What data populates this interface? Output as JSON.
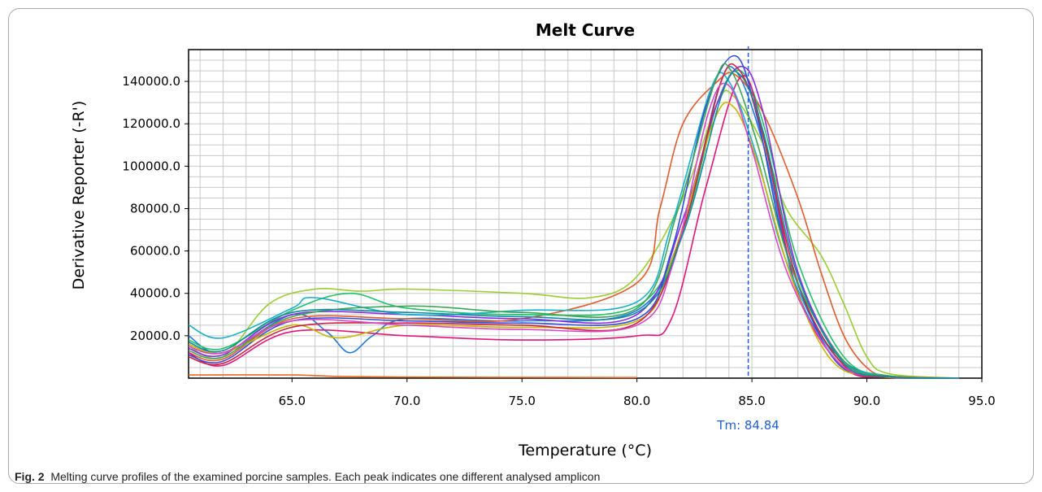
{
  "chart_data": {
    "type": "line",
    "title": "Melt Curve",
    "xlabel": "Temperature (°C)",
    "ylabel": "Derivative Reporter (-R')",
    "xlim": [
      60.5,
      95.0
    ],
    "ylim": [
      0,
      155000
    ],
    "xticks": [
      65.0,
      70.0,
      75.0,
      80.0,
      85.0,
      90.0,
      95.0
    ],
    "xtick_labels": [
      "65.0",
      "70.0",
      "75.0",
      "80.0",
      "85.0",
      "90.0",
      "95.0"
    ],
    "yticks": [
      20000,
      40000,
      60000,
      80000,
      100000,
      120000,
      140000
    ],
    "ytick_labels": [
      "20000.0",
      "40000.0",
      "60000.0",
      "80000.0",
      "100000.0",
      "120000.0",
      "140000.0"
    ],
    "grid": true,
    "threshold": {
      "x": 84.84,
      "label": "Tm: 84.84",
      "color": "#1f5fd6"
    },
    "series": [
      {
        "color": "#e86a1f",
        "x": [
          60.5,
          65,
          67,
          70,
          75,
          80
        ],
        "y": [
          1500,
          1500,
          800,
          500,
          400,
          300
        ]
      },
      {
        "color": "#1f7bd6",
        "x": [
          60.5,
          62,
          65,
          66.5,
          67.5,
          68.5,
          70,
          75,
          80,
          82,
          83.5,
          84.3,
          85.5,
          87,
          89,
          91,
          94
        ],
        "y": [
          20000,
          12000,
          30000,
          22000,
          12000,
          20000,
          28000,
          27000,
          32000,
          70000,
          135000,
          145000,
          110000,
          40000,
          8000,
          1000,
          0
        ]
      },
      {
        "color": "#9acd32",
        "x": [
          60.5,
          62,
          64,
          66,
          68,
          70,
          75,
          78,
          80,
          82,
          83.5,
          84.2,
          85.5,
          86.5,
          88,
          89,
          90,
          91,
          94
        ],
        "y": [
          15000,
          10000,
          35000,
          42000,
          41000,
          42000,
          40000,
          38000,
          48000,
          85000,
          130000,
          133000,
          110000,
          80000,
          58000,
          35000,
          10000,
          2000,
          0
        ]
      },
      {
        "color": "#e05a2b",
        "x": [
          60.5,
          62,
          65,
          70,
          75,
          80,
          81,
          82,
          83.5,
          84.3,
          85.5,
          87,
          88,
          89,
          90,
          91,
          94
        ],
        "y": [
          12000,
          9000,
          28000,
          28000,
          28000,
          45000,
          80000,
          120000,
          140000,
          143000,
          125000,
          85000,
          50000,
          20000,
          5000,
          1000,
          0
        ]
      },
      {
        "color": "#22c06a",
        "x": [
          60.5,
          62,
          65,
          67.5,
          70,
          75,
          80,
          82,
          83.5,
          84.5,
          85.5,
          87,
          89,
          91,
          94
        ],
        "y": [
          18000,
          14000,
          32000,
          40000,
          33000,
          30000,
          34000,
          70000,
          130000,
          145000,
          120000,
          55000,
          10000,
          1000,
          0
        ]
      },
      {
        "color": "#e0157a",
        "x": [
          60.5,
          62,
          65,
          70,
          75,
          80,
          81.5,
          83,
          84.5,
          85.5,
          87,
          89,
          91,
          94
        ],
        "y": [
          12000,
          6000,
          22000,
          20000,
          18000,
          20000,
          28000,
          90000,
          142000,
          115000,
          40000,
          5000,
          500,
          0
        ]
      },
      {
        "color": "#8a2be2",
        "x": [
          60.5,
          62,
          65,
          70,
          75,
          80,
          82,
          83.5,
          84.6,
          85.5,
          87,
          89,
          91,
          94
        ],
        "y": [
          14000,
          11000,
          30000,
          30000,
          28000,
          30000,
          75000,
          130000,
          147000,
          125000,
          50000,
          8000,
          800,
          0
        ]
      },
      {
        "color": "#18b0c8",
        "x": [
          60.5,
          62,
          65,
          66,
          70,
          75,
          80,
          81.5,
          83.2,
          84.0,
          85.2,
          86.5,
          88.5,
          90.5,
          94
        ],
        "y": [
          25000,
          19000,
          33000,
          38000,
          30000,
          32000,
          36000,
          72000,
          136000,
          140000,
          105000,
          55000,
          12000,
          1500,
          0
        ]
      },
      {
        "color": "#2e4fd8",
        "x": [
          60.5,
          62,
          65,
          70,
          75,
          80,
          81.5,
          83,
          84.3,
          85.3,
          86.5,
          88.5,
          90.5,
          94
        ],
        "y": [
          11000,
          8000,
          27000,
          27000,
          26000,
          28000,
          60000,
          128000,
          152000,
          120000,
          60000,
          10000,
          1000,
          0
        ]
      },
      {
        "color": "#c8b400",
        "x": [
          60.5,
          62,
          65,
          67,
          70,
          75,
          80,
          81.5,
          83.3,
          84.2,
          85.3,
          86.8,
          88.5,
          90.5,
          94
        ],
        "y": [
          16000,
          12000,
          25000,
          19000,
          25000,
          24000,
          27000,
          55000,
          120000,
          128000,
          100000,
          45000,
          8000,
          800,
          0
        ]
      },
      {
        "color": "#cc2244",
        "x": [
          60.5,
          62,
          65,
          70,
          75,
          80,
          82,
          83.6,
          84.4,
          85.4,
          87,
          89,
          91,
          94
        ],
        "y": [
          10000,
          7000,
          24000,
          26000,
          25000,
          26000,
          70000,
          138000,
          146000,
          118000,
          45000,
          6000,
          500,
          0
        ]
      },
      {
        "color": "#3aa655",
        "x": [
          60.5,
          62,
          65,
          70,
          75,
          80,
          81.8,
          83.4,
          84.1,
          85.2,
          86.8,
          89,
          91,
          94
        ],
        "y": [
          13000,
          10000,
          29000,
          34000,
          31000,
          33000,
          80000,
          140000,
          145000,
          112000,
          50000,
          8000,
          1000,
          0
        ]
      },
      {
        "color": "#d946c8",
        "x": [
          60.5,
          62,
          65,
          70,
          75,
          80,
          81.6,
          83.1,
          84.0,
          85.0,
          86.6,
          88.8,
          91,
          94
        ],
        "y": [
          15000,
          12000,
          27000,
          25000,
          23000,
          25000,
          55000,
          125000,
          138000,
          108000,
          48000,
          7000,
          600,
          0
        ]
      },
      {
        "color": "#0f8c9c",
        "x": [
          60.5,
          62,
          65,
          70,
          75,
          80,
          82,
          83.7,
          84.5,
          85.5,
          87,
          89,
          91,
          94
        ],
        "y": [
          17000,
          13000,
          31000,
          31000,
          29000,
          31000,
          68000,
          134000,
          143000,
          116000,
          48000,
          7000,
          700,
          0
        ]
      }
    ]
  },
  "caption": {
    "label": "Fig. 2",
    "text": "Melting curve profiles of the examined porcine samples. Each peak indicates one different analysed amplicon"
  }
}
